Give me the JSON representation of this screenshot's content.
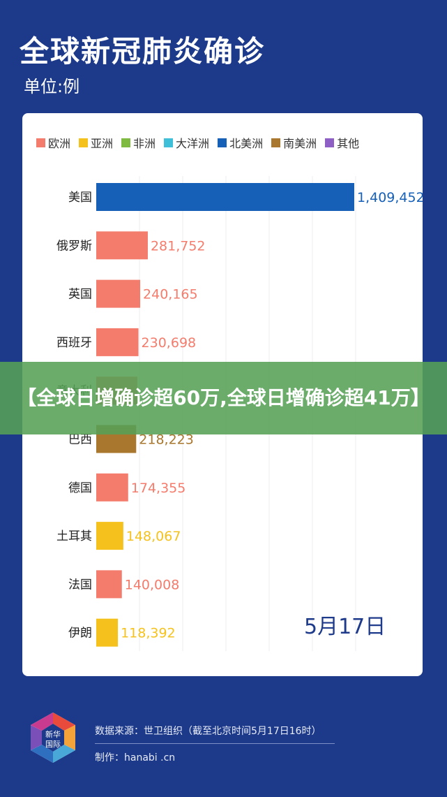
{
  "header": {
    "title": "全球新冠肺炎确诊",
    "unit": "单位:例"
  },
  "date_label": "5月17日",
  "banner": {
    "text": "【全球日增确诊超60万,全球日增确诊超41万】"
  },
  "footer": {
    "logo_text": "新华国际",
    "source": "数据来源：世卫组织（截至北京时间5月17日16时）",
    "author": "制作：hanabi .cn"
  },
  "colors": {
    "欧洲": "#f47c6c",
    "亚洲": "#f5c21d",
    "非洲": "#7fba43",
    "大洋洲": "#3fc0d8",
    "北美洲": "#1660b8",
    "南美洲": "#a9772e",
    "其他": "#8e5fc4"
  },
  "chart_data": {
    "type": "bar",
    "orientation": "horizontal",
    "title": "全球新冠肺炎确诊",
    "unit": "单位:例",
    "legend": [
      "欧洲",
      "亚洲",
      "非洲",
      "大洋洲",
      "北美洲",
      "南美洲",
      "其他"
    ],
    "legend_placement": "top",
    "categories": [
      "美国",
      "俄罗斯",
      "英国",
      "西班牙",
      "意大利",
      "巴西",
      "德国",
      "土耳其",
      "法国",
      "伊朗"
    ],
    "values": [
      1409452,
      281752,
      240165,
      230698,
      224760,
      218223,
      174355,
      148067,
      140008,
      118392
    ],
    "value_labels": [
      "1,409,452",
      "281,752",
      "240,165",
      "230,698",
      "",
      "218,223",
      "174,355",
      "148,067",
      "140,008",
      "118,392"
    ],
    "regions": [
      "北美洲",
      "欧洲",
      "欧洲",
      "欧洲",
      "欧洲",
      "南美洲",
      "欧洲",
      "亚洲",
      "欧洲",
      "亚洲"
    ],
    "xlim": [
      0,
      1409452
    ],
    "grid": true
  }
}
